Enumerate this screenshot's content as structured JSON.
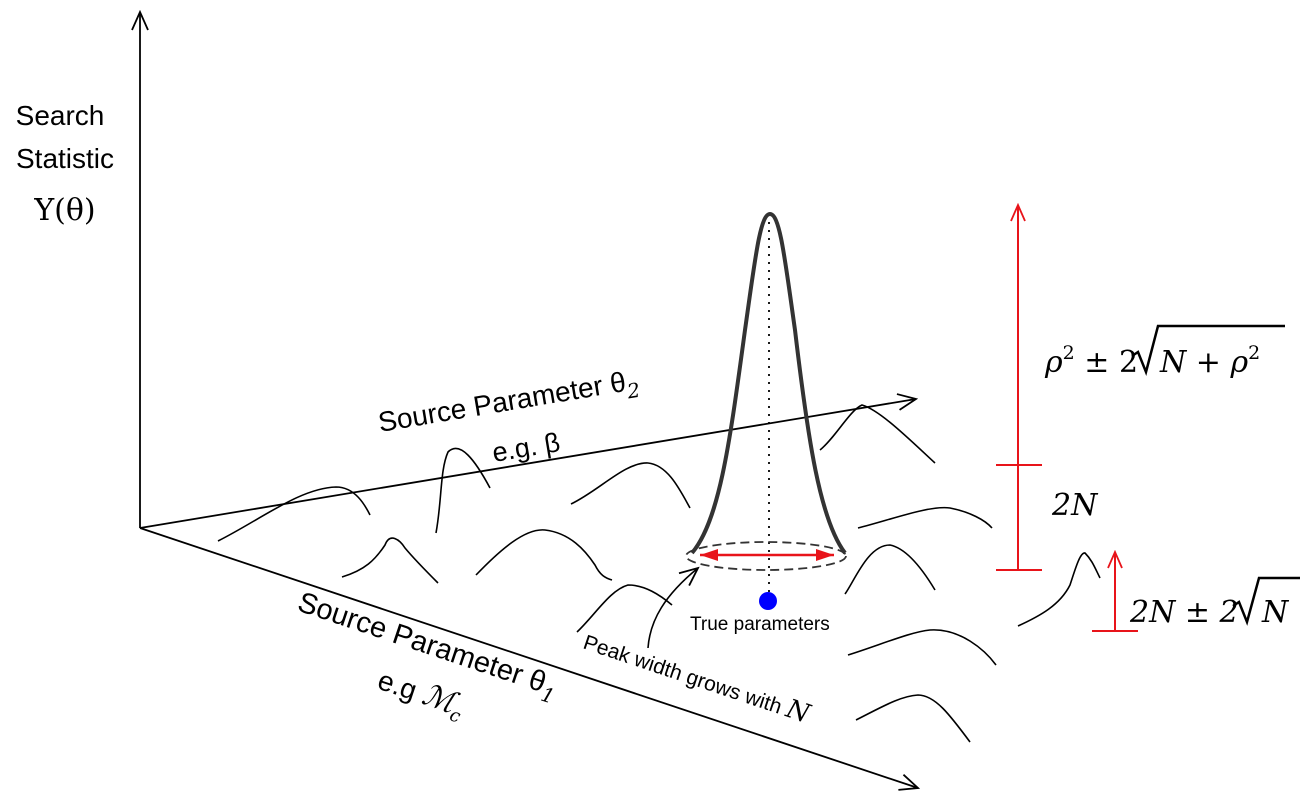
{
  "y_axis": {
    "label_line1": "Search",
    "label_line2": "Statistic",
    "label_symbol": "Υ(θ)"
  },
  "theta2_axis": {
    "label": "Source Parameter θ",
    "subscript": "2",
    "example": "e.g. β"
  },
  "theta1_axis": {
    "label": "Source Parameter θ",
    "subscript": "1",
    "example_prefix": "e.g ",
    "example_symbol": "ℳ",
    "example_subscript": "c"
  },
  "annotations": {
    "true_parameters": "True parameters",
    "peak_width": "Peak width grows with ",
    "peak_width_symbol": "N"
  },
  "scale_labels": {
    "signal_rho": "ρ",
    "signal_exp": "2",
    "signal_pm": " ± 2",
    "signal_root_inner": "N + ρ",
    "signal_root_exp": "2",
    "noise_level": "2N",
    "noise_fluct_prefix": "2N ± 2",
    "noise_fluct_root": "N"
  },
  "colors": {
    "axis": "#000000",
    "peak": "#333333",
    "accent": "#e8141a",
    "true_point": "#0000ff"
  }
}
